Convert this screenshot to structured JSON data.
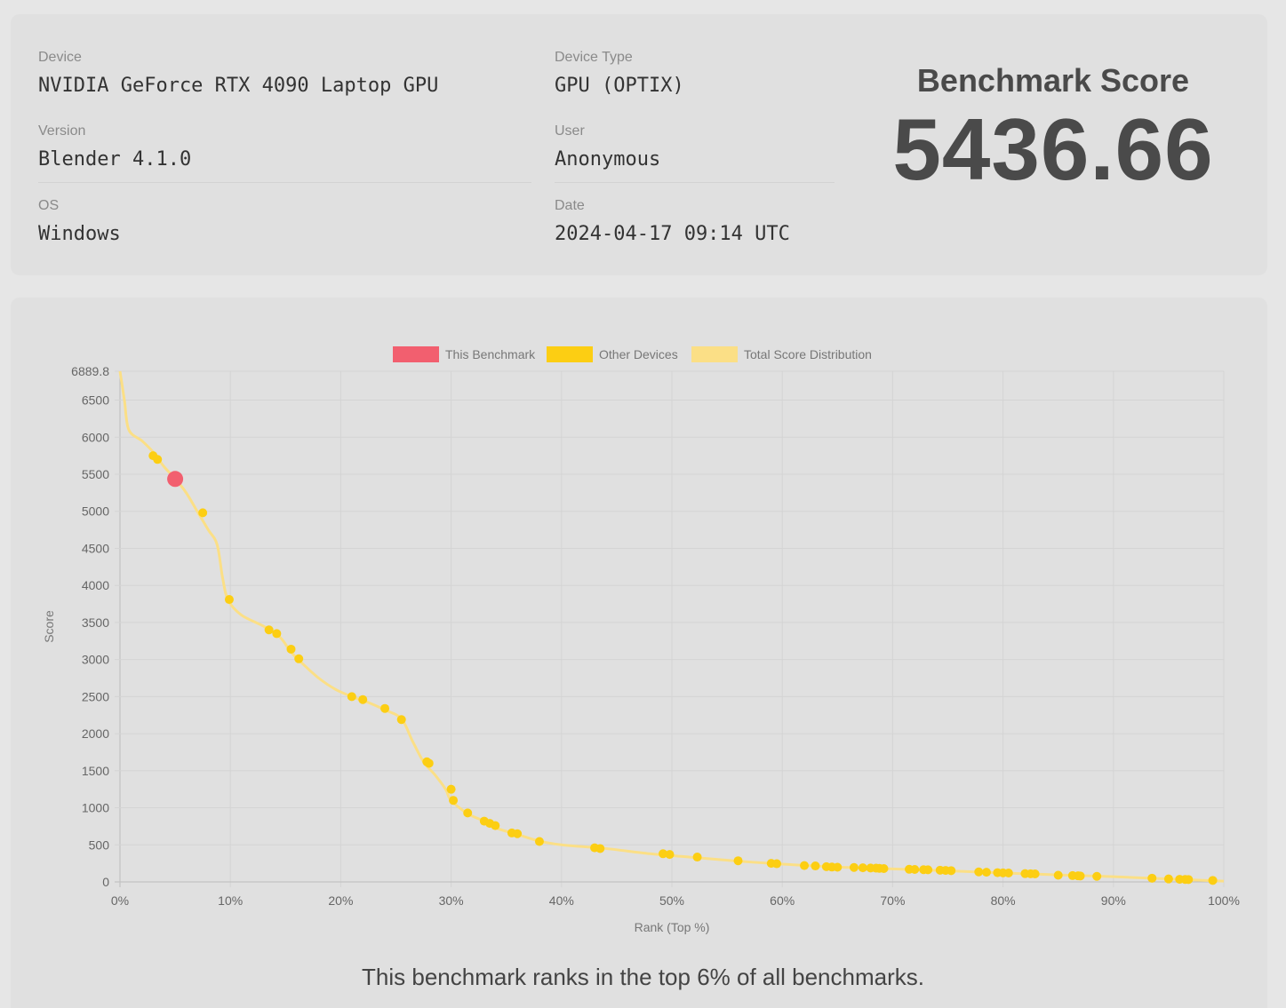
{
  "info": {
    "device_label": "Device",
    "device_value": "NVIDIA GeForce RTX 4090 Laptop GPU",
    "version_label": "Version",
    "version_value": "Blender 4.1.0",
    "os_label": "OS",
    "os_value": "Windows",
    "device_type_label": "Device Type",
    "device_type_value": "GPU (OPTIX)",
    "user_label": "User",
    "user_value": "Anonymous",
    "date_label": "Date",
    "date_value": "2024-04-17 09:14 UTC"
  },
  "score": {
    "title": "Benchmark Score",
    "value": "5436.66"
  },
  "summary": "This benchmark ranks in the top 6% of all benchmarks.",
  "colors": {
    "this_benchmark": "#f25f6f",
    "other_devices": "#fcce13",
    "distribution": "#fbdf86"
  },
  "chart_data": {
    "type": "scatter",
    "xlabel": "Rank (Top %)",
    "ylabel": "Score",
    "xlim": [
      0,
      100
    ],
    "ylim": [
      0,
      6889.8
    ],
    "x_ticks": [
      "0%",
      "10%",
      "20%",
      "30%",
      "40%",
      "50%",
      "60%",
      "70%",
      "80%",
      "90%",
      "100%"
    ],
    "y_ticks": [
      "0",
      "500",
      "1000",
      "1500",
      "2000",
      "2500",
      "3000",
      "3500",
      "4000",
      "4500",
      "5000",
      "5500",
      "6000",
      "6500",
      "6889.8"
    ],
    "legend": [
      "This Benchmark",
      "Other Devices",
      "Total Score Distribution"
    ],
    "legend_position": "top",
    "grid": true,
    "series": [
      {
        "name": "Total Score Distribution",
        "x": [
          0,
          0.4,
          0.8,
          2,
          3,
          4,
          5,
          6,
          7,
          8,
          8.8,
          9.3,
          9.8,
          11,
          13,
          14.5,
          15.5,
          16.5,
          18,
          19.5,
          21,
          22.5,
          24,
          25.5,
          26.5,
          27.5,
          28.5,
          29.5,
          30,
          31.5,
          33,
          34,
          36,
          38,
          40,
          44,
          48,
          52,
          56,
          60,
          65,
          70,
          75,
          80,
          85,
          90,
          95,
          100
        ],
        "y": [
          6889.8,
          6500,
          6100,
          5950,
          5800,
          5600,
          5440,
          5250,
          5000,
          4750,
          4550,
          4100,
          3800,
          3600,
          3450,
          3300,
          3100,
          2950,
          2750,
          2600,
          2500,
          2420,
          2320,
          2200,
          1900,
          1620,
          1450,
          1250,
          1100,
          920,
          820,
          730,
          640,
          550,
          500,
          450,
          380,
          330,
          280,
          240,
          200,
          175,
          150,
          120,
          95,
          70,
          40,
          10
        ]
      },
      {
        "name": "Other Devices",
        "x": [
          3,
          3.4,
          7.5,
          9.9,
          13.5,
          14.2,
          15.5,
          16.2,
          21,
          22,
          24,
          25.5,
          27.8,
          28,
          30,
          30.2,
          31.5,
          33,
          33.5,
          34,
          35.5,
          36,
          38,
          43,
          43.5,
          49.2,
          49.8,
          52.3,
          56,
          59,
          59.5,
          62,
          63,
          64,
          64.5,
          65,
          66.5,
          67.3,
          68,
          68.5,
          68.8,
          69.2,
          71.5,
          72,
          72.8,
          73.2,
          74.3,
          74.8,
          75.3,
          77.8,
          78.5,
          79.5,
          80,
          80.5,
          82,
          82.5,
          82.9,
          85,
          86.3,
          86.8,
          87,
          88.5,
          93.5,
          95,
          96,
          96.5,
          96.8,
          99
        ],
        "y": [
          5750,
          5700,
          4980,
          3810,
          3400,
          3350,
          3140,
          3010,
          2500,
          2460,
          2340,
          2190,
          1620,
          1600,
          1250,
          1100,
          930,
          820,
          790,
          760,
          660,
          650,
          545,
          460,
          450,
          380,
          370,
          335,
          285,
          250,
          245,
          220,
          215,
          205,
          200,
          198,
          195,
          190,
          187,
          185,
          183,
          180,
          170,
          168,
          165,
          163,
          158,
          155,
          152,
          135,
          130,
          125,
          122,
          120,
          112,
          110,
          108,
          90,
          85,
          82,
          80,
          75,
          50,
          40,
          35,
          33,
          32,
          20
        ]
      },
      {
        "name": "This Benchmark",
        "x": [
          5
        ],
        "y": [
          5436.66
        ]
      }
    ]
  }
}
